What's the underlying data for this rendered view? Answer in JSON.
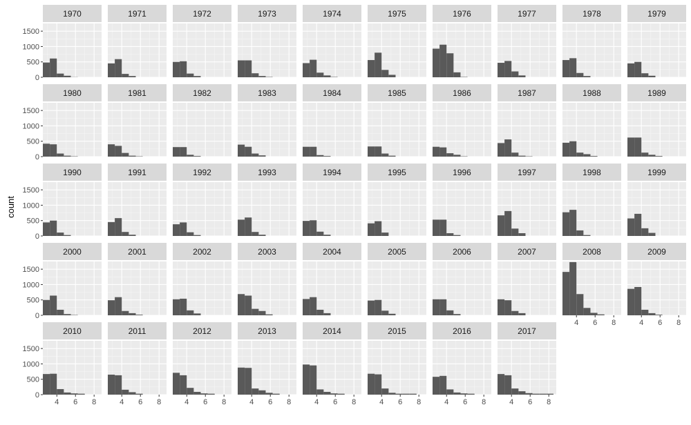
{
  "chart_data": {
    "type": "histogram",
    "facet_by": "year",
    "ylabel": "count",
    "xlabel": "",
    "y_ticks": [
      0,
      500,
      1000,
      1500
    ],
    "x_ticks": [
      4,
      6,
      8
    ],
    "ylim": [
      0,
      1750
    ],
    "xlim": [
      2.5,
      8.8
    ],
    "bin_starts": [
      2.5,
      3.25,
      4.0,
      4.75,
      5.5,
      6.25,
      7.0,
      7.75
    ],
    "bin_width": 0.75,
    "facets": [
      {
        "year": "1970",
        "counts": [
          480,
          610,
          120,
          50,
          5,
          0,
          0,
          0
        ]
      },
      {
        "year": "1971",
        "counts": [
          450,
          590,
          110,
          40,
          0,
          0,
          0,
          0
        ]
      },
      {
        "year": "1972",
        "counts": [
          500,
          520,
          120,
          40,
          0,
          0,
          0,
          0
        ]
      },
      {
        "year": "1973",
        "counts": [
          550,
          550,
          130,
          40,
          10,
          0,
          0,
          0
        ]
      },
      {
        "year": "1974",
        "counts": [
          460,
          570,
          150,
          60,
          10,
          0,
          0,
          0
        ]
      },
      {
        "year": "1975",
        "counts": [
          560,
          800,
          240,
          80,
          0,
          0,
          0,
          0
        ]
      },
      {
        "year": "1976",
        "counts": [
          930,
          1060,
          780,
          160,
          10,
          0,
          0,
          0
        ]
      },
      {
        "year": "1977",
        "counts": [
          470,
          530,
          190,
          60,
          0,
          0,
          0,
          0
        ]
      },
      {
        "year": "1978",
        "counts": [
          560,
          620,
          140,
          40,
          0,
          0,
          0,
          0
        ]
      },
      {
        "year": "1979",
        "counts": [
          450,
          500,
          130,
          50,
          0,
          0,
          0,
          0
        ]
      },
      {
        "year": "1980",
        "counts": [
          420,
          400,
          100,
          30,
          10,
          0,
          0,
          0
        ]
      },
      {
        "year": "1981",
        "counts": [
          400,
          350,
          120,
          30,
          10,
          0,
          0,
          0
        ]
      },
      {
        "year": "1982",
        "counts": [
          310,
          310,
          60,
          20,
          0,
          0,
          0,
          0
        ]
      },
      {
        "year": "1983",
        "counts": [
          390,
          320,
          100,
          40,
          0,
          0,
          0,
          0
        ]
      },
      {
        "year": "1984",
        "counts": [
          320,
          320,
          50,
          20,
          0,
          0,
          0,
          0
        ]
      },
      {
        "year": "1985",
        "counts": [
          330,
          330,
          100,
          30,
          0,
          0,
          0,
          0
        ]
      },
      {
        "year": "1986",
        "counts": [
          320,
          300,
          110,
          60,
          10,
          0,
          0,
          0
        ]
      },
      {
        "year": "1987",
        "counts": [
          440,
          560,
          130,
          30,
          10,
          0,
          0,
          0
        ]
      },
      {
        "year": "1988",
        "counts": [
          450,
          500,
          130,
          80,
          20,
          0,
          0,
          0
        ]
      },
      {
        "year": "1989",
        "counts": [
          620,
          620,
          130,
          60,
          20,
          0,
          0,
          0
        ]
      },
      {
        "year": "1990",
        "counts": [
          440,
          500,
          110,
          30,
          0,
          0,
          0,
          0
        ]
      },
      {
        "year": "1991",
        "counts": [
          450,
          580,
          130,
          40,
          0,
          0,
          0,
          0
        ]
      },
      {
        "year": "1992",
        "counts": [
          380,
          440,
          120,
          30,
          0,
          0,
          0,
          0
        ]
      },
      {
        "year": "1993",
        "counts": [
          530,
          600,
          130,
          40,
          0,
          0,
          0,
          0
        ]
      },
      {
        "year": "1994",
        "counts": [
          490,
          510,
          140,
          40,
          0,
          0,
          0,
          0
        ]
      },
      {
        "year": "1995",
        "counts": [
          410,
          480,
          110,
          0,
          0,
          0,
          0,
          0
        ]
      },
      {
        "year": "1996",
        "counts": [
          530,
          530,
          90,
          30,
          0,
          0,
          0,
          0
        ]
      },
      {
        "year": "1997",
        "counts": [
          670,
          810,
          240,
          90,
          0,
          0,
          0,
          0
        ]
      },
      {
        "year": "1998",
        "counts": [
          770,
          850,
          180,
          30,
          0,
          0,
          0,
          0
        ]
      },
      {
        "year": "1999",
        "counts": [
          570,
          720,
          250,
          100,
          0,
          0,
          0,
          0
        ]
      },
      {
        "year": "2000",
        "counts": [
          500,
          640,
          180,
          40,
          10,
          0,
          0,
          0
        ]
      },
      {
        "year": "2001",
        "counts": [
          490,
          590,
          140,
          70,
          20,
          0,
          0,
          0
        ]
      },
      {
        "year": "2002",
        "counts": [
          520,
          540,
          160,
          60,
          0,
          0,
          0,
          0
        ]
      },
      {
        "year": "2003",
        "counts": [
          690,
          640,
          210,
          140,
          30,
          0,
          0,
          0
        ]
      },
      {
        "year": "2004",
        "counts": [
          530,
          590,
          180,
          70,
          0,
          0,
          0,
          0
        ]
      },
      {
        "year": "2005",
        "counts": [
          480,
          500,
          150,
          50,
          0,
          0,
          0,
          0
        ]
      },
      {
        "year": "2006",
        "counts": [
          520,
          520,
          160,
          40,
          0,
          0,
          0,
          0
        ]
      },
      {
        "year": "2007",
        "counts": [
          520,
          490,
          140,
          70,
          0,
          0,
          0,
          0
        ]
      },
      {
        "year": "2008",
        "counts": [
          1410,
          1730,
          690,
          240,
          80,
          30,
          0,
          0
        ]
      },
      {
        "year": "2009",
        "counts": [
          860,
          920,
          180,
          70,
          20,
          0,
          0,
          0
        ]
      },
      {
        "year": "2010",
        "counts": [
          670,
          680,
          180,
          70,
          40,
          30,
          0,
          0
        ]
      },
      {
        "year": "2011",
        "counts": [
          650,
          630,
          160,
          80,
          30,
          0,
          0,
          0
        ]
      },
      {
        "year": "2012",
        "counts": [
          710,
          630,
          220,
          90,
          40,
          30,
          0,
          0
        ]
      },
      {
        "year": "2013",
        "counts": [
          880,
          870,
          200,
          140,
          60,
          30,
          0,
          0
        ]
      },
      {
        "year": "2014",
        "counts": [
          980,
          950,
          170,
          90,
          40,
          30,
          0,
          0
        ]
      },
      {
        "year": "2015",
        "counts": [
          680,
          660,
          200,
          60,
          30,
          30,
          30,
          0
        ]
      },
      {
        "year": "2016",
        "counts": [
          580,
          610,
          170,
          70,
          40,
          30,
          0,
          0
        ]
      },
      {
        "year": "2017",
        "counts": [
          670,
          630,
          200,
          110,
          50,
          30,
          30,
          30
        ]
      }
    ],
    "colors": {
      "bar": "#595959",
      "panel_bg": "#ebebeb",
      "grid_major": "#ffffff",
      "strip_bg": "#d9d9d9",
      "strip_text": "#1a1a1a",
      "tick_text": "#4d4d4d"
    }
  }
}
